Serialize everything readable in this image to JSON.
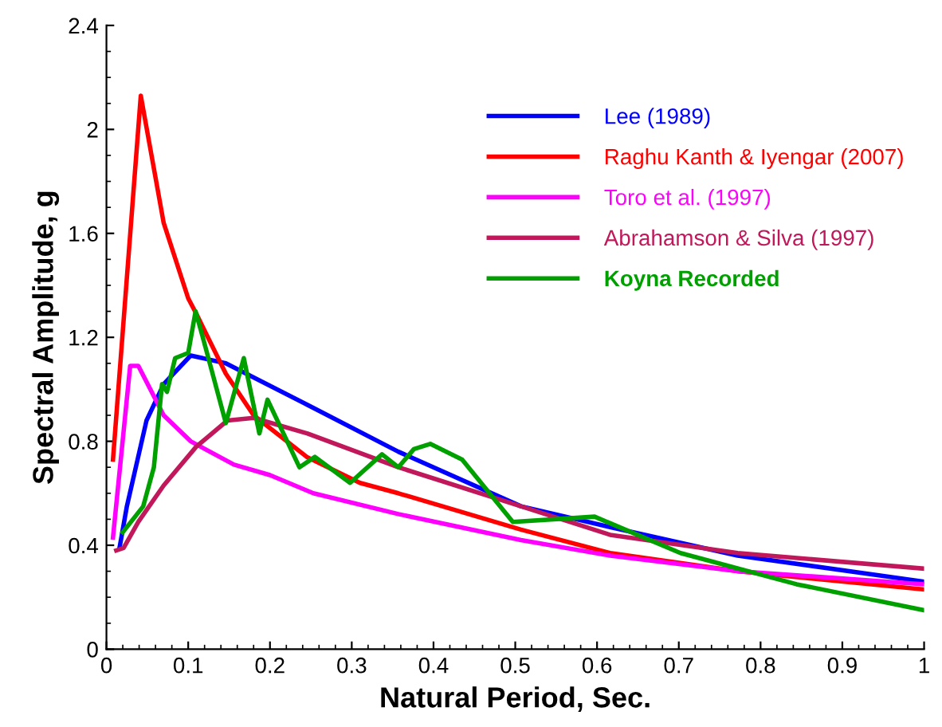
{
  "chart_data": {
    "type": "line",
    "xlabel": "Natural Period, Sec.",
    "ylabel": "Spectral Amplitude, g",
    "xlim": [
      0,
      1
    ],
    "ylim": [
      0,
      2.4
    ],
    "xticks": [
      0,
      0.1,
      0.2,
      0.3,
      0.4,
      0.5,
      0.6,
      0.7,
      0.8,
      0.9,
      1
    ],
    "yticks": [
      0,
      0.4,
      0.8,
      1.2,
      1.6,
      2,
      2.4
    ],
    "grid": false,
    "legend": "top right",
    "marker": "none",
    "line_style": "solid",
    "series": [
      {
        "name": "Lee (1989)",
        "color": "#0000ff",
        "x": [
          0.016,
          0.025,
          0.049,
          0.07,
          0.103,
          0.146,
          0.246,
          0.357,
          0.507,
          0.616,
          0.772,
          1.0
        ],
        "values": [
          0.39,
          0.55,
          0.88,
          1.02,
          1.13,
          1.1,
          0.94,
          0.76,
          0.55,
          0.47,
          0.36,
          0.26
        ]
      },
      {
        "name": "Raghu Kanth & Iyengar (2007)",
        "color": "#ff0000",
        "x": [
          0.008,
          0.042,
          0.07,
          0.1,
          0.11,
          0.146,
          0.18,
          0.245,
          0.31,
          0.357,
          0.507,
          0.616,
          0.772,
          1.0
        ],
        "values": [
          0.73,
          2.13,
          1.64,
          1.35,
          1.29,
          1.06,
          0.9,
          0.74,
          0.64,
          0.6,
          0.46,
          0.37,
          0.3,
          0.23
        ]
      },
      {
        "name": "Toro et al. (1997)",
        "color": "#ff00ff",
        "x": [
          0.008,
          0.029,
          0.039,
          0.07,
          0.103,
          0.156,
          0.2,
          0.253,
          0.357,
          0.507,
          0.616,
          0.772,
          1.0
        ],
        "values": [
          0.43,
          1.09,
          1.09,
          0.9,
          0.8,
          0.71,
          0.67,
          0.6,
          0.52,
          0.42,
          0.36,
          0.3,
          0.25
        ]
      },
      {
        "name": "Abrahamson & Silva (1997)",
        "color": "#c0185a",
        "x": [
          0.012,
          0.021,
          0.039,
          0.07,
          0.11,
          0.148,
          0.18,
          0.246,
          0.357,
          0.507,
          0.616,
          0.772,
          1.0
        ],
        "values": [
          0.38,
          0.39,
          0.49,
          0.63,
          0.78,
          0.88,
          0.89,
          0.83,
          0.7,
          0.55,
          0.44,
          0.37,
          0.31
        ]
      },
      {
        "name": "Koyna Recorded",
        "color": "#00a000",
        "x": [
          0.02,
          0.045,
          0.058,
          0.068,
          0.074,
          0.084,
          0.1,
          0.109,
          0.117,
          0.146,
          0.168,
          0.187,
          0.197,
          0.236,
          0.255,
          0.298,
          0.337,
          0.357,
          0.376,
          0.396,
          0.435,
          0.497,
          0.597,
          0.702,
          0.844,
          1.0
        ],
        "values": [
          0.45,
          0.55,
          0.7,
          1.02,
          0.99,
          1.12,
          1.14,
          1.3,
          1.21,
          0.87,
          1.12,
          0.83,
          0.96,
          0.7,
          0.74,
          0.64,
          0.75,
          0.7,
          0.77,
          0.79,
          0.73,
          0.49,
          0.51,
          0.37,
          0.25,
          0.15
        ]
      }
    ]
  }
}
